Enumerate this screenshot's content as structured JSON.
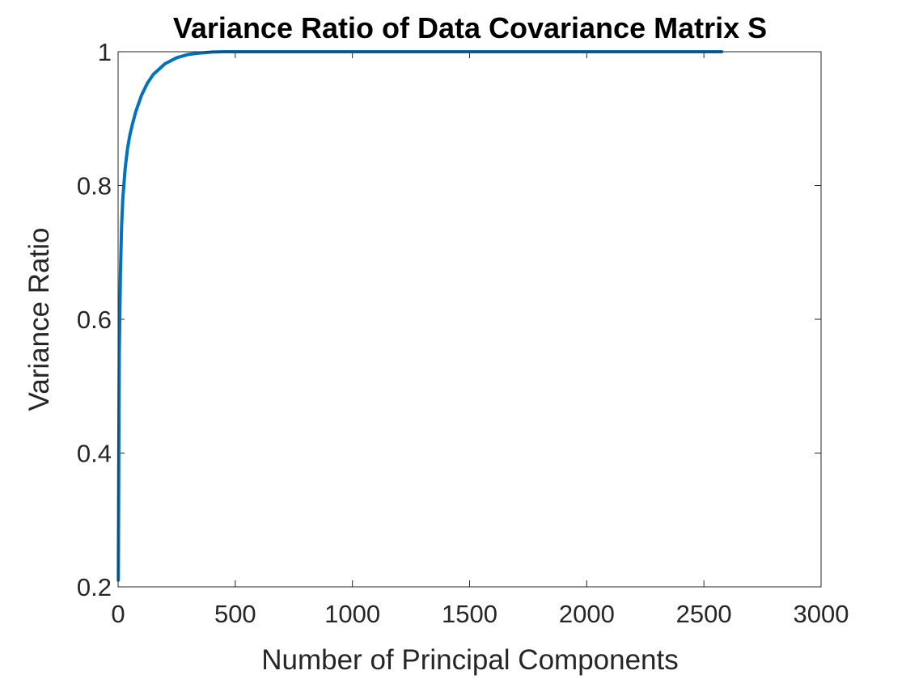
{
  "chart_data": {
    "type": "line",
    "title": "Variance Ratio of Data Covariance Matrix S",
    "xlabel": "Number of Principal Components",
    "ylabel": "Variance Ratio",
    "xlim": [
      0,
      3000
    ],
    "ylim": [
      0.2,
      1
    ],
    "xticks": [
      "0",
      "500",
      "1000",
      "1500",
      "2000",
      "2500",
      "3000"
    ],
    "yticks": [
      "0.2",
      "0.4",
      "0.6",
      "0.8",
      "1"
    ],
    "grid": false,
    "series": [
      {
        "color": "#0072BD",
        "x": [
          1,
          3,
          5,
          10,
          15,
          20,
          30,
          40,
          50,
          60,
          75,
          100,
          125,
          150,
          200,
          250,
          300,
          350,
          400,
          450,
          500,
          1000,
          1500,
          2000,
          2500,
          2576
        ],
        "y": [
          0.21,
          0.4,
          0.55,
          0.67,
          0.74,
          0.78,
          0.825,
          0.855,
          0.875,
          0.89,
          0.91,
          0.935,
          0.953,
          0.966,
          0.982,
          0.991,
          0.996,
          0.998,
          0.9995,
          1.0,
          1.0,
          1.0,
          1.0,
          1.0,
          1.0,
          1.0
        ]
      }
    ]
  }
}
